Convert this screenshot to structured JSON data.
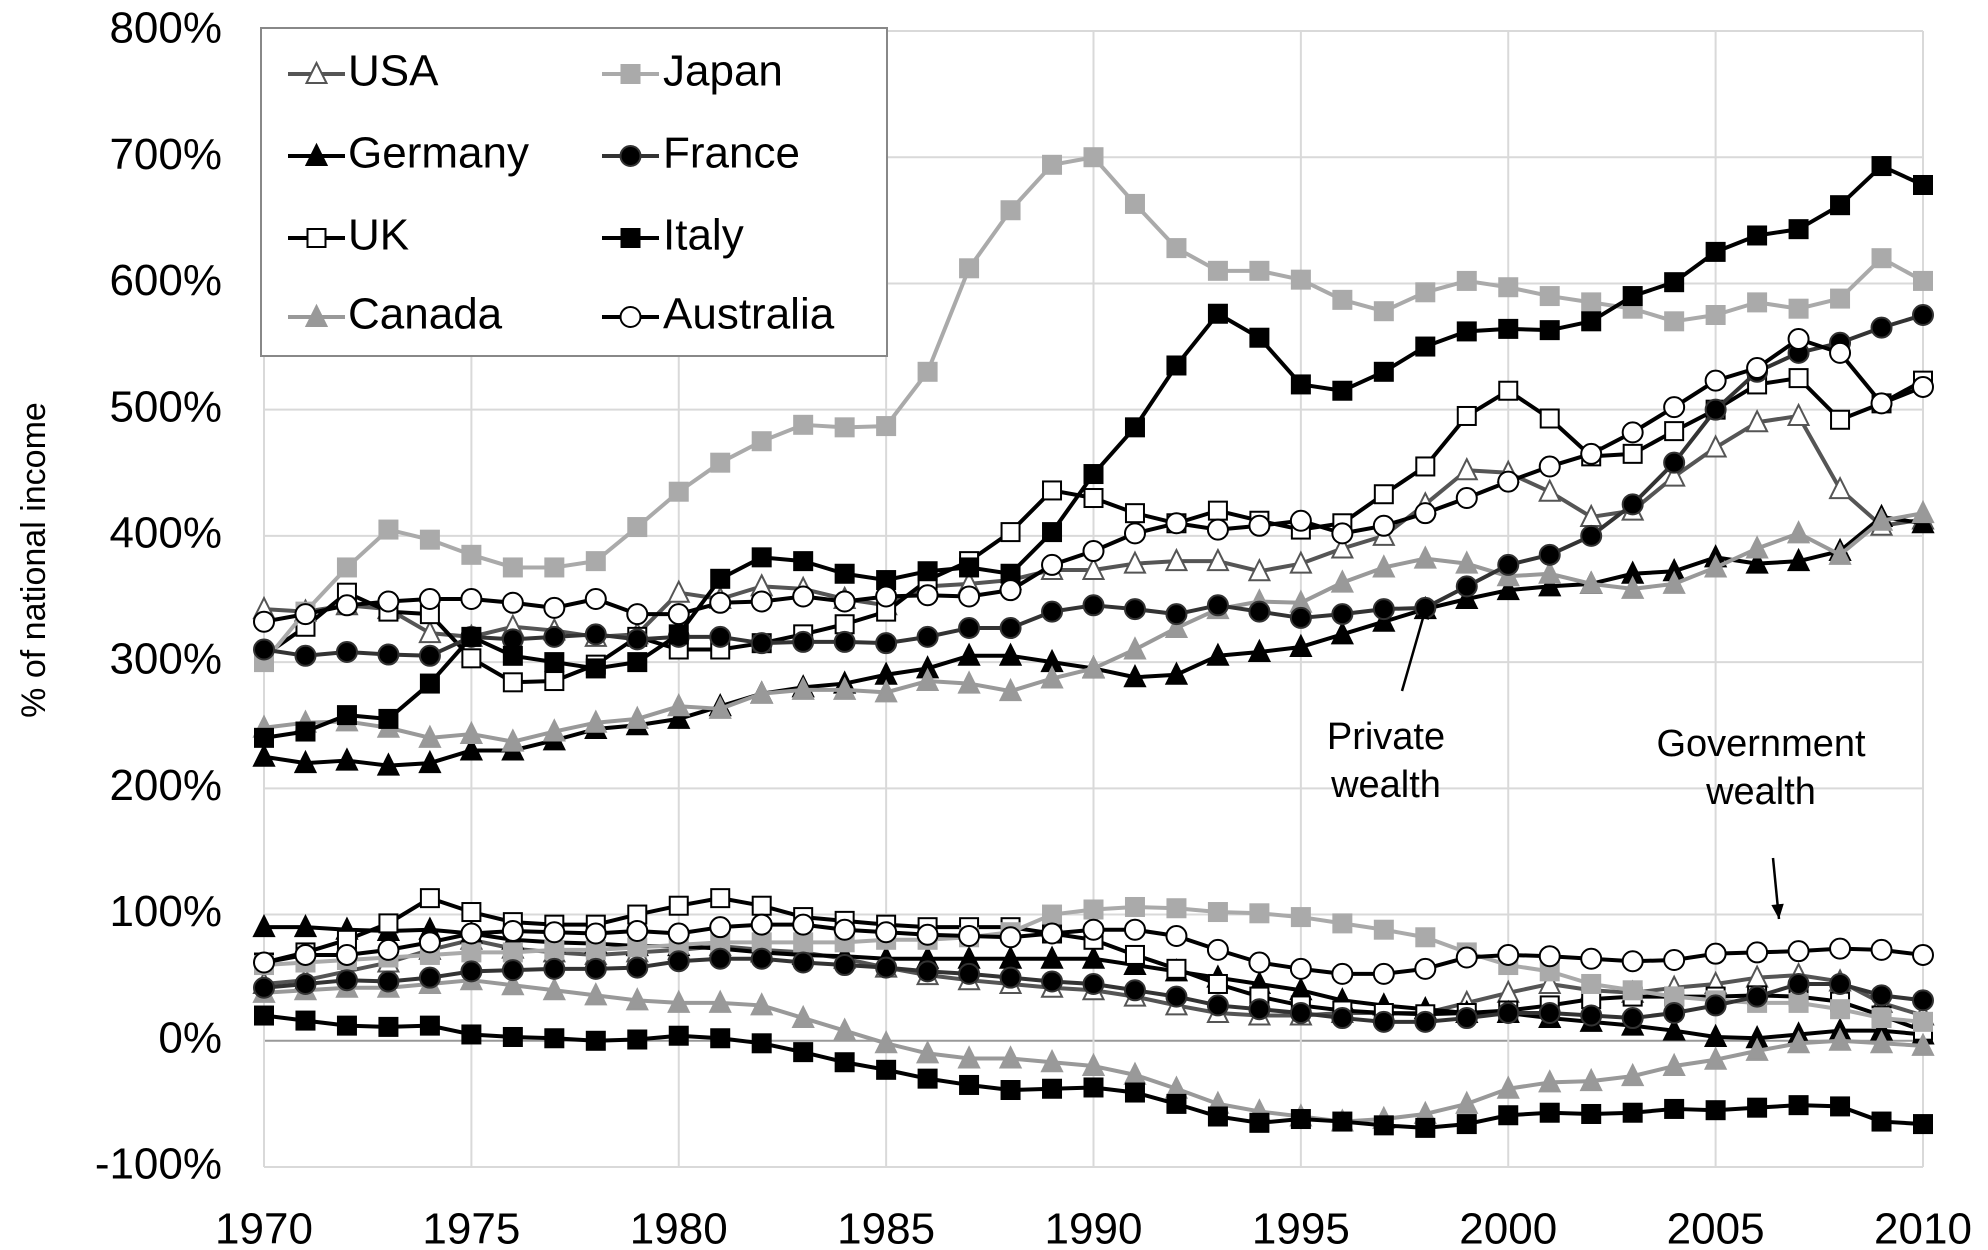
{
  "chart_data": {
    "type": "line",
    "y_label": "% of national income",
    "x": [
      1970,
      1971,
      1972,
      1973,
      1974,
      1975,
      1976,
      1977,
      1978,
      1979,
      1980,
      1981,
      1982,
      1983,
      1984,
      1985,
      1986,
      1987,
      1988,
      1989,
      1990,
      1991,
      1992,
      1993,
      1994,
      1995,
      1996,
      1997,
      1998,
      1999,
      2000,
      2001,
      2002,
      2003,
      2004,
      2005,
      2006,
      2007,
      2008,
      2009,
      2010
    ],
    "xlim": [
      1970,
      2010
    ],
    "xticks": [
      1970,
      1975,
      1980,
      1985,
      1990,
      1995,
      2000,
      2005,
      2010
    ],
    "ylim": [
      -100,
      800
    ],
    "yticks": [
      {
        "value": -100,
        "label": "-100%"
      },
      {
        "value": 0,
        "label": "0%"
      },
      {
        "value": 100,
        "label": "100%"
      },
      {
        "value": 200,
        "label": "200%"
      },
      {
        "value": 300,
        "label": "300%"
      },
      {
        "value": 400,
        "label": "400%"
      },
      {
        "value": 500,
        "label": "500%"
      },
      {
        "value": 600,
        "label": "600%"
      },
      {
        "value": 700,
        "label": "700%"
      },
      {
        "value": 800,
        "label": "800%"
      }
    ],
    "grid": true,
    "legend": "upper left",
    "annotations": [
      {
        "lines": [
          "Private",
          "wealth"
        ]
      },
      {
        "lines": [
          "Government",
          "wealth"
        ]
      }
    ],
    "series": [
      {
        "name": "USA",
        "color": "#555555",
        "marker": "triangle",
        "marker_fill": "#ffffff",
        "private": [
          342,
          340,
          345,
          342,
          323,
          320,
          328,
          325,
          320,
          322,
          355,
          350,
          360,
          358,
          350,
          345,
          360,
          362,
          365,
          373,
          373,
          378,
          380,
          380,
          372,
          378,
          390,
          400,
          425,
          452,
          450,
          435,
          415,
          420,
          447,
          470,
          490,
          495,
          437,
          408,
          413
        ],
        "government": [
          45,
          48,
          55,
          62,
          72,
          80,
          73,
          70,
          68,
          70,
          72,
          75,
          72,
          70,
          65,
          58,
          52,
          48,
          45,
          42,
          40,
          35,
          28,
          22,
          20,
          20,
          22,
          22,
          22,
          30,
          38,
          45,
          40,
          38,
          42,
          45,
          50,
          52,
          47,
          30,
          20
        ]
      },
      {
        "name": "Germany",
        "color": "#000000",
        "marker": "triangle",
        "marker_fill": "#000000",
        "private": [
          225,
          220,
          222,
          218,
          220,
          230,
          230,
          238,
          247,
          250,
          255,
          265,
          275,
          280,
          283,
          290,
          295,
          305,
          305,
          300,
          295,
          288,
          290,
          305,
          308,
          312,
          322,
          332,
          342,
          350,
          357,
          360,
          362,
          370,
          372,
          383,
          378,
          380,
          388,
          415,
          410
        ],
        "government": [
          90,
          90,
          88,
          87,
          88,
          85,
          80,
          78,
          77,
          75,
          75,
          73,
          70,
          68,
          67,
          65,
          65,
          65,
          65,
          65,
          65,
          60,
          55,
          50,
          45,
          40,
          32,
          28,
          25,
          22,
          22,
          18,
          15,
          12,
          8,
          3,
          2,
          5,
          8,
          8,
          5
        ]
      },
      {
        "name": "UK",
        "color": "#000000",
        "marker": "square",
        "marker_fill": "#ffffff",
        "private": [
          305,
          328,
          355,
          340,
          338,
          303,
          284,
          285,
          298,
          320,
          310,
          310,
          315,
          322,
          330,
          340,
          365,
          380,
          403,
          436,
          430,
          418,
          410,
          420,
          412,
          405,
          410,
          433,
          455,
          495,
          515,
          493,
          463,
          465,
          483,
          500,
          520,
          525,
          492,
          505,
          523
        ],
        "government": [
          62,
          70,
          80,
          93,
          113,
          102,
          94,
          92,
          92,
          100,
          107,
          113,
          107,
          98,
          95,
          92,
          90,
          90,
          90,
          85,
          80,
          68,
          57,
          45,
          35,
          28,
          24,
          22,
          21,
          22,
          24,
          28,
          33,
          35,
          35,
          35,
          36,
          35,
          31,
          20,
          8
        ]
      },
      {
        "name": "Canada",
        "color": "#999999",
        "marker": "triangle",
        "marker_fill": "#999999",
        "private": [
          248,
          252,
          253,
          248,
          240,
          243,
          237,
          245,
          252,
          255,
          265,
          263,
          275,
          278,
          278,
          276,
          285,
          283,
          277,
          287,
          295,
          310,
          327,
          342,
          348,
          347,
          363,
          375,
          382,
          378,
          368,
          370,
          362,
          358,
          362,
          375,
          390,
          402,
          385,
          412,
          418
        ],
        "government": [
          38,
          40,
          42,
          42,
          45,
          48,
          44,
          40,
          36,
          32,
          30,
          30,
          28,
          18,
          8,
          -2,
          -10,
          -14,
          -14,
          -17,
          -20,
          -27,
          -38,
          -50,
          -56,
          -60,
          -64,
          -62,
          -58,
          -50,
          -38,
          -33,
          -32,
          -28,
          -20,
          -15,
          -8,
          -2,
          0,
          -2,
          -4
        ]
      },
      {
        "name": "Japan",
        "color": "#aaaaaa",
        "marker": "square",
        "marker_fill": "#aaaaaa",
        "private": [
          300,
          340,
          375,
          405,
          397,
          385,
          375,
          375,
          380,
          407,
          435,
          458,
          475,
          488,
          486,
          487,
          530,
          612,
          658,
          694,
          700,
          663,
          628,
          610,
          610,
          603,
          587,
          578,
          593,
          602,
          597,
          590,
          585,
          580,
          570,
          575,
          585,
          580,
          588,
          620,
          602
        ],
        "government": [
          60,
          62,
          64,
          66,
          68,
          70,
          70,
          72,
          72,
          74,
          76,
          78,
          78,
          78,
          78,
          80,
          80,
          82,
          86,
          100,
          104,
          106,
          105,
          102,
          101,
          98,
          93,
          88,
          82,
          70,
          60,
          55,
          45,
          40,
          35,
          32,
          30,
          30,
          25,
          18,
          15
        ]
      },
      {
        "name": "France",
        "color": "#333333",
        "marker": "circle",
        "marker_fill": "#000000",
        "private": [
          310,
          305,
          308,
          306,
          305,
          320,
          318,
          320,
          322,
          318,
          320,
          320,
          315,
          316,
          316,
          315,
          320,
          327,
          327,
          340,
          345,
          342,
          338,
          345,
          340,
          335,
          338,
          342,
          343,
          360,
          377,
          385,
          400,
          425,
          458,
          500,
          530,
          545,
          553,
          565,
          575
        ],
        "government": [
          42,
          45,
          48,
          47,
          50,
          55,
          56,
          57,
          57,
          58,
          63,
          65,
          65,
          62,
          60,
          58,
          55,
          53,
          50,
          47,
          45,
          40,
          35,
          28,
          25,
          22,
          18,
          15,
          15,
          18,
          22,
          22,
          20,
          18,
          22,
          28,
          35,
          45,
          45,
          36,
          32
        ]
      },
      {
        "name": "Italy",
        "color": "#000000",
        "marker": "square",
        "marker_fill": "#000000",
        "private": [
          240,
          245,
          258,
          255,
          283,
          320,
          305,
          300,
          295,
          300,
          322,
          366,
          383,
          380,
          370,
          365,
          372,
          375,
          370,
          403,
          449,
          486,
          535,
          576,
          557,
          520,
          515,
          530,
          550,
          562,
          564,
          563,
          570,
          590,
          601,
          625,
          638,
          643,
          662,
          693,
          678
        ],
        "government": [
          20,
          16,
          12,
          11,
          12,
          5,
          3,
          2,
          0,
          1,
          4,
          2,
          -2,
          -9,
          -17,
          -23,
          -30,
          -35,
          -39,
          -38,
          -37,
          -41,
          -50,
          -60,
          -65,
          -62,
          -64,
          -67,
          -69,
          -66,
          -59,
          -57,
          -58,
          -57,
          -54,
          -55,
          -53,
          -51,
          -52,
          -64,
          -66
        ]
      },
      {
        "name": "Australia",
        "color": "#000000",
        "marker": "circle",
        "marker_fill": "#ffffff",
        "private": [
          332,
          338,
          345,
          348,
          350,
          350,
          347,
          343,
          350,
          338,
          338,
          347,
          348,
          352,
          348,
          352,
          353,
          352,
          357,
          377,
          388,
          402,
          410,
          405,
          408,
          412,
          402,
          408,
          418,
          430,
          443,
          455,
          465,
          482,
          502,
          523,
          533,
          556,
          545,
          505,
          518
        ],
        "government": [
          62,
          68,
          68,
          72,
          78,
          85,
          87,
          86,
          85,
          87,
          85,
          90,
          92,
          92,
          88,
          86,
          84,
          83,
          82,
          85,
          88,
          88,
          83,
          72,
          62,
          57,
          53,
          53,
          57,
          66,
          68,
          67,
          65,
          63,
          64,
          69,
          70,
          71,
          73,
          72,
          68
        ]
      }
    ]
  }
}
